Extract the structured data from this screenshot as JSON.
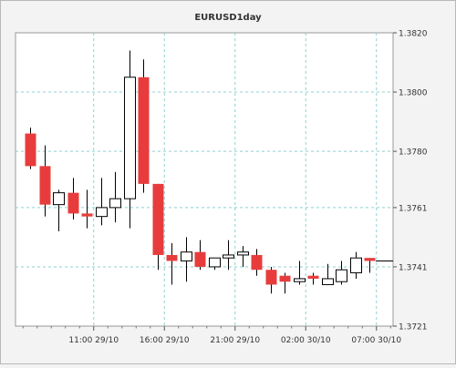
{
  "chart_data": {
    "type": "candlestick",
    "title": "EURUSD1day",
    "y_axis_position": "right",
    "ylim": [
      1.3721,
      1.382
    ],
    "y_ticks": [
      "1.3820",
      "1.3800",
      "1.3780",
      "1.3761",
      "1.3741",
      "1.3721"
    ],
    "y_tick_values": [
      1.382,
      1.38,
      1.378,
      1.3761,
      1.3741,
      1.3721
    ],
    "x_ticks": [
      "11:00 29/10",
      "16:00 29/10",
      "21:00 29/10",
      "02:00 30/10",
      "07:00 30/10"
    ],
    "x_tick_indices": [
      4.5,
      9.5,
      14.5,
      19.5,
      24.5
    ],
    "x_index_range": [
      0,
      26
    ],
    "grid": true,
    "colors": {
      "bullish_fill": "#ffffff",
      "bearish_fill": "#e83c3c",
      "wick": "#000000",
      "grid": "#8fd0d0",
      "plot_bg": "#ffffff"
    },
    "candles": [
      {
        "open": 1.3786,
        "high": 1.3788,
        "low": 1.3774,
        "close": 1.3775
      },
      {
        "open": 1.3775,
        "high": 1.3782,
        "low": 1.3758,
        "close": 1.3762
      },
      {
        "open": 1.3762,
        "high": 1.3767,
        "low": 1.3753,
        "close": 1.3766
      },
      {
        "open": 1.3766,
        "high": 1.3771,
        "low": 1.3757,
        "close": 1.3759
      },
      {
        "open": 1.3759,
        "high": 1.3767,
        "low": 1.3754,
        "close": 1.3758
      },
      {
        "open": 1.3758,
        "high": 1.3771,
        "low": 1.3755,
        "close": 1.3761
      },
      {
        "open": 1.3761,
        "high": 1.3773,
        "low": 1.3756,
        "close": 1.3764
      },
      {
        "open": 1.3764,
        "high": 1.3814,
        "low": 1.3754,
        "close": 1.3805
      },
      {
        "open": 1.3805,
        "high": 1.3811,
        "low": 1.3766,
        "close": 1.3769
      },
      {
        "open": 1.3769,
        "high": 1.3769,
        "low": 1.374,
        "close": 1.3745
      },
      {
        "open": 1.3745,
        "high": 1.3749,
        "low": 1.3735,
        "close": 1.3743
      },
      {
        "open": 1.3743,
        "high": 1.3751,
        "low": 1.3736,
        "close": 1.3746
      },
      {
        "open": 1.3746,
        "high": 1.375,
        "low": 1.374,
        "close": 1.3741
      },
      {
        "open": 1.3741,
        "high": 1.3744,
        "low": 1.374,
        "close": 1.3744
      },
      {
        "open": 1.3744,
        "high": 1.375,
        "low": 1.374,
        "close": 1.3745
      },
      {
        "open": 1.3745,
        "high": 1.3748,
        "low": 1.3741,
        "close": 1.3746
      },
      {
        "open": 1.3745,
        "high": 1.3747,
        "low": 1.3738,
        "close": 1.374
      },
      {
        "open": 1.374,
        "high": 1.3741,
        "low": 1.3732,
        "close": 1.3735
      },
      {
        "open": 1.3738,
        "high": 1.3739,
        "low": 1.3732,
        "close": 1.3736
      },
      {
        "open": 1.3736,
        "high": 1.3743,
        "low": 1.3735,
        "close": 1.3737
      },
      {
        "open": 1.3738,
        "high": 1.3739,
        "low": 1.3735,
        "close": 1.3737
      },
      {
        "open": 1.3735,
        "high": 1.3742,
        "low": 1.3735,
        "close": 1.3737
      },
      {
        "open": 1.3736,
        "high": 1.3743,
        "low": 1.3735,
        "close": 1.374
      },
      {
        "open": 1.3739,
        "high": 1.3746,
        "low": 1.3737,
        "close": 1.3744
      },
      {
        "open": 1.3744,
        "high": 1.3744,
        "low": 1.3739,
        "close": 1.3743
      }
    ]
  }
}
